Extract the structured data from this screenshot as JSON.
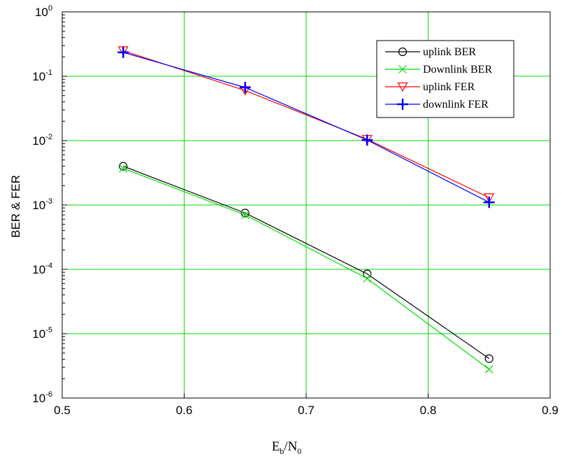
{
  "chart_data": {
    "type": "line",
    "xlabel": {
      "main": "E",
      "sub1": "b",
      "sep": "/N",
      "sub2": "0"
    },
    "ylabel": "BER & FER",
    "xlim": [
      0.5,
      0.9
    ],
    "ylim": [
      1e-06,
      1
    ],
    "yscale": "log",
    "grid": true,
    "grid_color": "#00dd00",
    "legend_position": "top-right",
    "x_ticks": [
      "0.5",
      "0.6",
      "0.7",
      "0.8",
      "0.9"
    ],
    "y_ticks": [
      {
        "base": "10",
        "exp": "-6"
      },
      {
        "base": "10",
        "exp": "-5"
      },
      {
        "base": "10",
        "exp": "-4"
      },
      {
        "base": "10",
        "exp": "-3"
      },
      {
        "base": "10",
        "exp": "-2"
      },
      {
        "base": "10",
        "exp": "-1"
      },
      {
        "base": "10",
        "exp": "0"
      }
    ],
    "series": [
      {
        "name": "uplink BER",
        "color": "#000000",
        "marker": "circle",
        "x": [
          0.55,
          0.65,
          0.75,
          0.85
        ],
        "y": [
          0.004,
          0.00075,
          8.5e-05,
          4.1e-06
        ]
      },
      {
        "name": "Downlink BER",
        "color": "#00dd00",
        "marker": "x",
        "x": [
          0.55,
          0.65,
          0.75,
          0.85
        ],
        "y": [
          0.0037,
          0.0007,
          7.2e-05,
          2.8e-06
        ]
      },
      {
        "name": "uplink FER",
        "color": "#ff0000",
        "marker": "triangle-down",
        "x": [
          0.55,
          0.65,
          0.75,
          0.85
        ],
        "y": [
          0.25,
          0.06,
          0.0105,
          0.0013
        ]
      },
      {
        "name": "downlink FER",
        "color": "#0000ff",
        "marker": "plus",
        "x": [
          0.55,
          0.65,
          0.75,
          0.85
        ],
        "y": [
          0.235,
          0.067,
          0.0102,
          0.0011
        ]
      }
    ]
  }
}
